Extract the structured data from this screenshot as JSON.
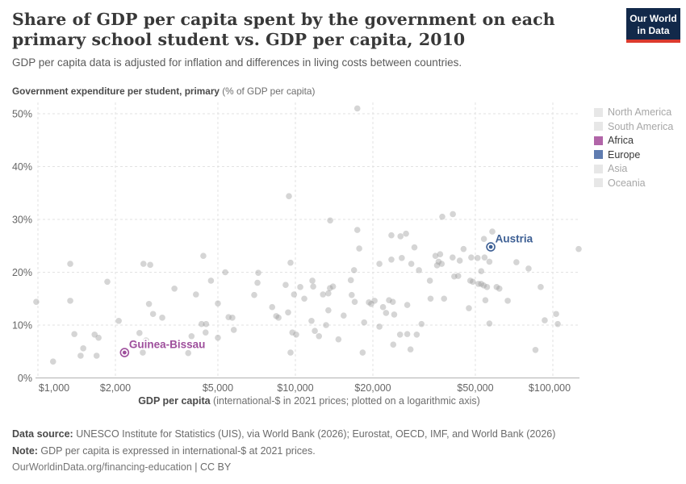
{
  "header": {
    "title": "Share of GDP per capita spent by the government on each primary school student vs. GDP per capita, 2010",
    "subtitle": "GDP per capita data is adjusted for inflation and differences in living costs between countries.",
    "logo_line1": "Our World",
    "logo_line2": "in Data",
    "logo_bg": "#12294a",
    "logo_bar": "#dc3a2e"
  },
  "axis_titles": {
    "y_bold": "Government expenditure per student, primary",
    "y_rest": " (% of GDP per capita)",
    "x_bold": "GDP per capita",
    "x_rest": " (international-$ in 2021 prices; plotted on a logarithmic axis)"
  },
  "legend": {
    "items": [
      {
        "label": "North America",
        "color": "#e7e7e7",
        "text_color": "#a7a7a7",
        "active": false
      },
      {
        "label": "South America",
        "color": "#e7e7e7",
        "text_color": "#a7a7a7",
        "active": false
      },
      {
        "label": "Africa",
        "color": "#b165a8",
        "text_color": "#383838",
        "active": true
      },
      {
        "label": "Europe",
        "color": "#5f7cb0",
        "text_color": "#383838",
        "active": true
      },
      {
        "label": "Asia",
        "color": "#e7e7e7",
        "text_color": "#a7a7a7",
        "active": false
      },
      {
        "label": "Oceania",
        "color": "#e7e7e7",
        "text_color": "#a7a7a7",
        "active": false
      }
    ]
  },
  "chart_data": {
    "type": "scatter",
    "title": "Share of GDP per capita spent by the government on each primary school student vs. GDP per capita, 2010",
    "xlabel": "GDP per capita (international-$ in 2021 prices; plotted on a logarithmic axis)",
    "ylabel": "Government expenditure per student, primary (% of GDP per capita)",
    "x_scale": "log",
    "xlim": [
      900,
      130000
    ],
    "ylim": [
      0,
      52
    ],
    "grid": true,
    "legend_position": "right",
    "point_color": "#9a9a9a",
    "point_opacity": 0.42,
    "grid_color": "#e2e2e2",
    "axis_line_color": "#bdbdbd",
    "tick_text_color": "#666666",
    "x_ticks": [
      {
        "v": 1000,
        "label": "$1,000"
      },
      {
        "v": 2000,
        "label": "$2,000"
      },
      {
        "v": 5000,
        "label": "$5,000"
      },
      {
        "v": 10000,
        "label": "$10,000"
      },
      {
        "v": 20000,
        "label": "$20,000"
      },
      {
        "v": 50000,
        "label": "$50,000"
      },
      {
        "v": 100000,
        "label": "$100,000"
      }
    ],
    "y_ticks": [
      {
        "v": 0,
        "label": "0%"
      },
      {
        "v": 10,
        "label": "10%"
      },
      {
        "v": 20,
        "label": "20%"
      },
      {
        "v": 30,
        "label": "30%"
      },
      {
        "v": 40,
        "label": "40%"
      },
      {
        "v": 50,
        "label": "50%"
      }
    ],
    "series": [
      {
        "name": "countries-unhighlighted",
        "values": [
          [
            985,
            14.4
          ],
          [
            1145,
            3.1
          ],
          [
            1335,
            21.6
          ],
          [
            1335,
            14.6
          ],
          [
            1385,
            8.3
          ],
          [
            1465,
            4.2
          ],
          [
            1500,
            5.6
          ],
          [
            1660,
            8.2
          ],
          [
            1690,
            4.2
          ],
          [
            1720,
            7.6
          ],
          [
            1860,
            18.2
          ],
          [
            2060,
            10.8
          ],
          [
            2480,
            8.5
          ],
          [
            2555,
            4.8
          ],
          [
            2570,
            21.6
          ],
          [
            2630,
            7.1
          ],
          [
            2700,
            14.0
          ],
          [
            2730,
            21.4
          ],
          [
            2800,
            12.1
          ],
          [
            3040,
            11.4
          ],
          [
            3390,
            16.9
          ],
          [
            3700,
            6.3
          ],
          [
            3835,
            4.7
          ],
          [
            3950,
            7.9
          ],
          [
            4110,
            15.8
          ],
          [
            4320,
            10.2
          ],
          [
            4390,
            23.1
          ],
          [
            4480,
            8.6
          ],
          [
            4500,
            10.2
          ],
          [
            4700,
            18.4
          ],
          [
            5000,
            14.1
          ],
          [
            5000,
            7.6
          ],
          [
            5340,
            20.0
          ],
          [
            5500,
            11.5
          ],
          [
            5690,
            11.4
          ],
          [
            5765,
            9.1
          ],
          [
            6920,
            15.7
          ],
          [
            7125,
            18.0
          ],
          [
            7175,
            19.9
          ],
          [
            8125,
            13.4
          ],
          [
            8425,
            11.7
          ],
          [
            8600,
            11.4
          ],
          [
            9165,
            17.6
          ],
          [
            9370,
            12.4
          ],
          [
            9440,
            34.4
          ],
          [
            9575,
            21.8
          ],
          [
            9575,
            4.8
          ],
          [
            9730,
            8.6
          ],
          [
            9880,
            15.8
          ],
          [
            10070,
            8.2
          ],
          [
            10445,
            17.2
          ],
          [
            10830,
            15.0
          ],
          [
            11550,
            10.8
          ],
          [
            11640,
            18.4
          ],
          [
            11730,
            17.3
          ],
          [
            11900,
            8.9
          ],
          [
            12350,
            7.9
          ],
          [
            12800,
            15.8
          ],
          [
            13155,
            10.0
          ],
          [
            13430,
            16.0
          ],
          [
            13430,
            12.8
          ],
          [
            13620,
            17.0
          ],
          [
            13650,
            29.8
          ],
          [
            14000,
            17.3
          ],
          [
            14700,
            7.3
          ],
          [
            15400,
            11.8
          ],
          [
            16420,
            18.5
          ],
          [
            16550,
            15.7
          ],
          [
            16900,
            20.4
          ],
          [
            17000,
            14.4
          ],
          [
            17400,
            51.0
          ],
          [
            17400,
            28.0
          ],
          [
            17700,
            24.5
          ],
          [
            18250,
            4.8
          ],
          [
            18500,
            10.5
          ],
          [
            19300,
            14.3
          ],
          [
            19700,
            14.0
          ],
          [
            20300,
            14.6
          ],
          [
            21200,
            9.7
          ],
          [
            21200,
            21.6
          ],
          [
            21900,
            13.4
          ],
          [
            22500,
            12.3
          ],
          [
            23100,
            14.7
          ],
          [
            23600,
            27.0
          ],
          [
            23600,
            22.4
          ],
          [
            23900,
            14.4
          ],
          [
            24000,
            6.3
          ],
          [
            24200,
            12.0
          ],
          [
            25500,
            8.2
          ],
          [
            25600,
            26.8
          ],
          [
            25900,
            22.7
          ],
          [
            26900,
            27.3
          ],
          [
            27200,
            13.8
          ],
          [
            27200,
            8.3
          ],
          [
            28000,
            5.4
          ],
          [
            28200,
            21.6
          ],
          [
            29000,
            24.7
          ],
          [
            29600,
            8.2
          ],
          [
            30200,
            20.4
          ],
          [
            30900,
            10.2
          ],
          [
            33300,
            18.4
          ],
          [
            33500,
            15.0
          ],
          [
            35000,
            23.1
          ],
          [
            35500,
            21.3
          ],
          [
            36000,
            22.0
          ],
          [
            36500,
            23.4
          ],
          [
            37000,
            21.6
          ],
          [
            37200,
            30.5
          ],
          [
            37800,
            15.0
          ],
          [
            40800,
            22.8
          ],
          [
            40900,
            31.0
          ],
          [
            41400,
            19.2
          ],
          [
            42900,
            19.3
          ],
          [
            43500,
            22.2
          ],
          [
            45000,
            24.4
          ],
          [
            47200,
            13.2
          ],
          [
            47800,
            18.4
          ],
          [
            48200,
            22.8
          ],
          [
            48900,
            18.2
          ],
          [
            51000,
            22.7
          ],
          [
            51400,
            17.8
          ],
          [
            52700,
            20.2
          ],
          [
            52700,
            17.8
          ],
          [
            53900,
            17.5
          ],
          [
            54000,
            26.3
          ],
          [
            54300,
            22.8
          ],
          [
            54700,
            14.7
          ],
          [
            55500,
            17.2
          ],
          [
            56700,
            22.0
          ],
          [
            56700,
            10.3
          ],
          [
            58200,
            27.7
          ],
          [
            60500,
            17.2
          ],
          [
            62000,
            16.9
          ],
          [
            66800,
            14.6
          ],
          [
            72200,
            21.9
          ],
          [
            80500,
            20.7
          ],
          [
            85600,
            5.3
          ],
          [
            89700,
            17.2
          ],
          [
            93000,
            10.9
          ],
          [
            103000,
            12.1
          ],
          [
            104500,
            10.2
          ],
          [
            126000,
            24.4
          ]
        ]
      }
    ],
    "highlights": [
      {
        "name": "Guinea-Bissau",
        "x": 2170,
        "y": 4.8,
        "color": "#9e4f9c",
        "region": "Africa"
      },
      {
        "name": "Austria",
        "x": 57400,
        "y": 24.8,
        "color": "#3d5f94",
        "region": "Europe"
      }
    ]
  },
  "footer": {
    "source_label": "Data source:",
    "source_text": " UNESCO Institute for Statistics (UIS), via World Bank (2026); Eurostat, OECD, IMF, and World Bank (2026)",
    "note_label": "Note:",
    "note_text": " GDP per capita is expressed in international-$ at 2021 prices.",
    "url": "OurWorldinData.org/financing-education",
    "license": " | CC BY"
  }
}
